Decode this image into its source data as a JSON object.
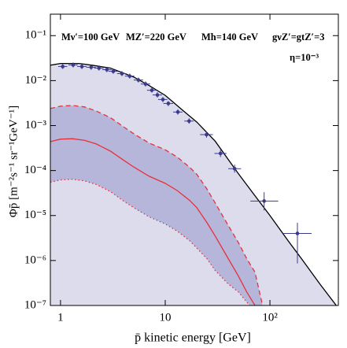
{
  "chart_data": {
    "type": "line",
    "xlog": true,
    "ylog": true,
    "xlim": [
      0.8,
      450
    ],
    "ylim": [
      1e-07,
      0.3
    ],
    "xticks": [
      1,
      10,
      {
        "value": 100,
        "label": "10²"
      }
    ],
    "yticks": [
      {
        "value": 1e-07,
        "label": "10⁻⁷"
      },
      {
        "value": 1e-06,
        "label": "10⁻⁶"
      },
      {
        "value": 1e-05,
        "label": "10⁻⁵"
      },
      {
        "value": 0.0001,
        "label": "10⁻⁴"
      },
      {
        "value": 0.001,
        "label": "10⁻³"
      },
      {
        "value": 0.01,
        "label": "10⁻²"
      },
      {
        "value": 0.1,
        "label": "10⁻¹"
      }
    ],
    "xlabel": "p̄ kinetic energy [GeV]",
    "ylabel": "Φp̄  [m⁻²s⁻¹ sr⁻¹GeV⁻¹]",
    "annotations": [
      "Mν′=100 GeV",
      "MZ′=220 GeV",
      "Mh=140 GeV",
      "gνZ′=gtZ′=3",
      "η=10⁻³"
    ],
    "series": [
      {
        "color": "#000000",
        "fill": "#dcdcec",
        "dash": "solid",
        "x": [
          0.8,
          1,
          1.5,
          2,
          3,
          5,
          7,
          10,
          15,
          20,
          30,
          50,
          70,
          100,
          150,
          200,
          300,
          430
        ],
        "values": [
          0.022,
          0.024,
          0.024,
          0.022,
          0.019,
          0.012,
          0.0078,
          0.0047,
          0.0021,
          0.0012,
          0.00045,
          8.5e-05,
          3e-05,
          1e-05,
          2.7e-06,
          1.1e-06,
          3e-07,
          1e-07
        ]
      },
      {
        "color": "#e8303a",
        "fill": "#b6b6da",
        "dash": "dashed",
        "x": [
          0.8,
          1,
          1.3,
          1.7,
          2.2,
          3,
          4,
          5,
          7,
          10,
          13,
          17,
          20,
          25,
          30,
          40,
          50,
          60,
          72,
          85
        ],
        "values": [
          0.0024,
          0.0027,
          0.0028,
          0.0026,
          0.0021,
          0.0015,
          0.00094,
          0.00066,
          0.00041,
          0.00029,
          0.0002,
          0.00012,
          8.3e-05,
          3.9e-05,
          1.9e-05,
          6e-06,
          2.5e-06,
          1.1e-06,
          5.5e-07,
          1e-07
        ]
      },
      {
        "color": "#e8303a",
        "fill": "#dcdcec",
        "dash": "dotted",
        "x": [
          0.8,
          1,
          1.3,
          1.7,
          2.2,
          3,
          4,
          5,
          7,
          10,
          13,
          17,
          20,
          25,
          30,
          40,
          50,
          64
        ],
        "values": [
          5.5e-05,
          6.2e-05,
          6.4e-05,
          5.9e-05,
          4.9e-05,
          3.4e-05,
          2.1e-05,
          1.5e-05,
          9.4e-06,
          6.5e-06,
          4.5e-06,
          2.8e-06,
          1.9e-06,
          1.1e-06,
          6e-07,
          3e-07,
          2e-07,
          1e-07
        ]
      },
      {
        "color": "#e8303a",
        "dash": "solid",
        "x": [
          0.8,
          1,
          1.3,
          1.7,
          2.2,
          3,
          4,
          5,
          7,
          10,
          13,
          17,
          20,
          25,
          30,
          40,
          50,
          60,
          72
        ],
        "values": [
          0.00044,
          0.0005,
          0.00051,
          0.00047,
          0.00039,
          0.00027,
          0.00017,
          0.00012,
          7.5e-05,
          5.2e-05,
          3.6e-05,
          2.2e-05,
          1.5e-05,
          7e-06,
          3.5e-06,
          1.1e-06,
          4.5e-07,
          2e-07,
          1e-07
        ]
      }
    ],
    "points": {
      "color": "#3b3b8c",
      "x": [
        1.05,
        1.32,
        1.6,
        1.96,
        2.33,
        2.77,
        3.19,
        3.86,
        4.58,
        5.55,
        6.49,
        7.45,
        8.42,
        9.5,
        10.7,
        13.2,
        16.9,
        24.8,
        33.7,
        46,
        88,
        183
      ],
      "values": [
        0.0206,
        0.0223,
        0.0206,
        0.0198,
        0.019,
        0.0175,
        0.0161,
        0.0143,
        0.0126,
        0.0103,
        0.0084,
        0.0061,
        0.0048,
        0.0038,
        0.0031,
        0.002,
        0.00126,
        0.00063,
        0.00024,
        0.00011,
        2.1e-05,
        4e-06
      ],
      "xlow": [
        0.95,
        1.19,
        1.44,
        1.76,
        2.1,
        2.5,
        2.87,
        3.47,
        4.12,
        5.0,
        5.84,
        6.7,
        7.58,
        8.55,
        9.6,
        11.9,
        15.2,
        21.5,
        29.5,
        40,
        65,
        135
      ],
      "xhigh": [
        1.16,
        1.46,
        1.77,
        2.17,
        2.58,
        3.07,
        3.53,
        4.27,
        5.07,
        6.14,
        7.18,
        8.25,
        9.32,
        10.5,
        11.9,
        14.6,
        18.7,
        28.5,
        38.5,
        53,
        120,
        250
      ],
      "ylow": [
        0.0181,
        0.0196,
        0.0181,
        0.0174,
        0.0167,
        0.0154,
        0.0142,
        0.0126,
        0.0111,
        0.0091,
        0.0074,
        0.0054,
        0.0042,
        0.0033,
        0.0027,
        0.00175,
        0.0011,
        0.00054,
        0.0002,
        9e-05,
        1.3e-05,
        8.6e-07
      ],
      "yhigh": [
        0.0234,
        0.0254,
        0.0234,
        0.0225,
        0.0216,
        0.0199,
        0.0183,
        0.0163,
        0.0143,
        0.0117,
        0.0096,
        0.0069,
        0.0055,
        0.0043,
        0.0035,
        0.0023,
        0.00145,
        0.00074,
        0.00029,
        0.000135,
        3.3e-05,
        6.9e-06
      ]
    }
  }
}
